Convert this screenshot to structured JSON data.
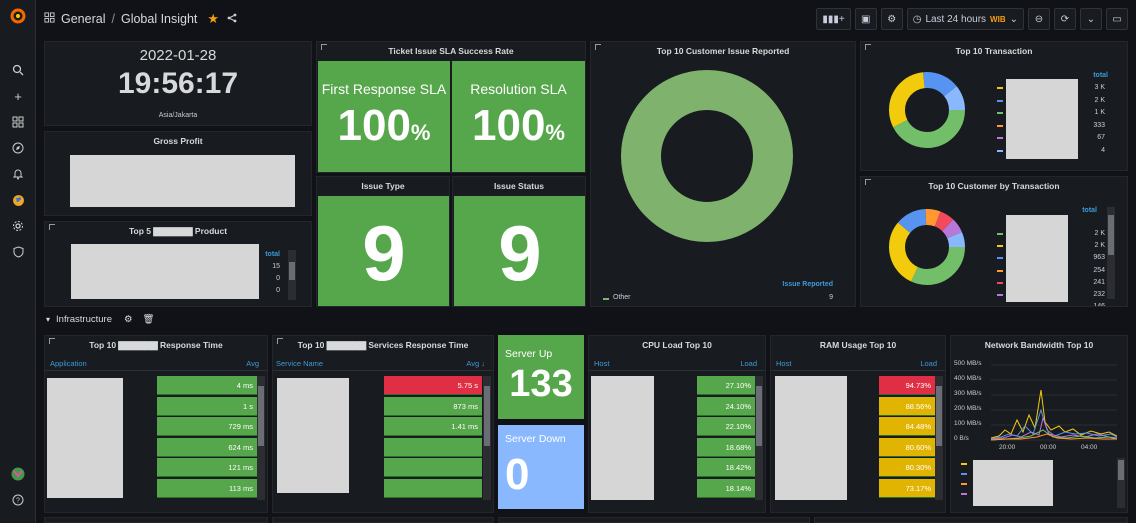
{
  "topbar": {
    "breadcrumb_folder": "General",
    "breadcrumb_sep": "/",
    "breadcrumb_title": "Global Insight",
    "time_range": "Last 24 hours",
    "time_badge": "WIB"
  },
  "clock": {
    "date": "2022-01-28",
    "time": "19:56:17",
    "timezone": "Asia/Jakarta"
  },
  "gross_profit": {
    "title": "Gross Profit"
  },
  "top5": {
    "title": "Top 5 ▇▇▇▇▇▇ Product",
    "col": "total",
    "values": [
      "15",
      "0",
      "0"
    ]
  },
  "sla": {
    "title": "Ticket Issue SLA Success Rate",
    "first_label": "First Response SLA",
    "first_value": "100",
    "first_unit": "%",
    "res_label": "Resolution SLA",
    "res_value": "100",
    "res_unit": "%"
  },
  "issue_type": {
    "title": "Issue Type",
    "value": "9"
  },
  "issue_status": {
    "title": "Issue Status",
    "value": "9"
  },
  "top10_issue": {
    "title": "Top 10 Customer Issue Reported",
    "legend_col": "Issue Reported",
    "legend_name": "Other",
    "legend_value": "9"
  },
  "top10_tx": {
    "title": "Top 10 Transaction",
    "col": "total",
    "values": [
      "3 K",
      "2 K",
      "1 K",
      "333",
      "67",
      "4"
    ],
    "colors": [
      "#f2cc0c",
      "#5794f2",
      "#73bf69",
      "#ff9830",
      "#b877d9",
      "#8ab8ff"
    ]
  },
  "top10_cust": {
    "title": "Top 10 Customer by Transaction",
    "col": "total",
    "values": [
      "2 K",
      "2 K",
      "963",
      "254",
      "241",
      "232",
      "146"
    ],
    "colors": [
      "#73bf69",
      "#f2cc0c",
      "#5794f2",
      "#ff9830",
      "#f2495c",
      "#b877d9",
      "#8ab8ff"
    ]
  },
  "row": {
    "title": "Infrastructure"
  },
  "resp": {
    "title": "Top 10 ▇▇▇▇▇▇ Response Time",
    "col1": "Application",
    "col2": "Avg",
    "values": [
      "4 ms",
      "1 s",
      "729 ms",
      "624 ms",
      "121 ms",
      "113 ms"
    ]
  },
  "svc": {
    "title": "Top 10 ▇▇▇▇▇▇ Services Response Time",
    "col1": "Service Name",
    "col2": "Avg ↓",
    "values": [
      "5.75 s",
      "873 ms",
      "1.41 ms",
      "",
      "",
      ""
    ]
  },
  "server_up": {
    "label": "Server Up",
    "value": "133"
  },
  "server_down": {
    "label": "Server Down",
    "value": "0"
  },
  "cpu": {
    "title": "CPU Load Top 10",
    "col1": "Host",
    "col2": "Load",
    "values": [
      "27.10%",
      "24.10%",
      "22.10%",
      "18.68%",
      "18.42%",
      "18.14%"
    ]
  },
  "ram": {
    "title": "RAM Usage Top 10",
    "col1": "Host",
    "col2": "Load",
    "values": [
      "94.73%",
      "88.56%",
      "84.48%",
      "80.60%",
      "80.30%",
      "73.17%"
    ]
  },
  "net": {
    "title": "Network Bandwidth Top 10",
    "yticks": [
      "500 MB/s",
      "400 MB/s",
      "300 MB/s",
      "200 MB/s",
      "100 MB/s",
      "0 B/s"
    ],
    "xticks": [
      "20:00",
      "00:00",
      "04:00"
    ]
  }
}
